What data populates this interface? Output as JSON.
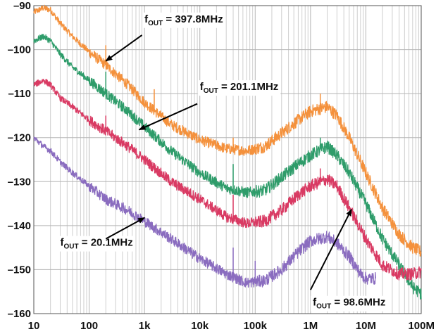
{
  "chart_data": {
    "type": "line",
    "title": "",
    "xlabel": "",
    "ylabel": "",
    "x_scale": "log",
    "xlim": [
      10,
      100000000
    ],
    "ylim": [
      -160,
      -90
    ],
    "grid": true,
    "x_ticks": [
      {
        "value": 10,
        "label": "10"
      },
      {
        "value": 100,
        "label": "100"
      },
      {
        "value": 1000,
        "label": "1k"
      },
      {
        "value": 10000,
        "label": "10k"
      },
      {
        "value": 100000,
        "label": "100k"
      },
      {
        "value": 1000000,
        "label": "1M"
      },
      {
        "value": 10000000,
        "label": "10M"
      },
      {
        "value": 100000000,
        "label": "100M"
      }
    ],
    "y_ticks": [
      {
        "value": -90,
        "label": "–90"
      },
      {
        "value": -100,
        "label": "–100"
      },
      {
        "value": -110,
        "label": "–110"
      },
      {
        "value": -120,
        "label": "–120"
      },
      {
        "value": -130,
        "label": "–130"
      },
      {
        "value": -140,
        "label": "–140"
      },
      {
        "value": -150,
        "label": "–150"
      },
      {
        "value": -160,
        "label": "–160"
      }
    ],
    "series": [
      {
        "name": "fOUT = 397.8MHz",
        "color": "#f4913c",
        "points": [
          [
            10,
            -91.5
          ],
          [
            15,
            -90.5
          ],
          [
            20,
            -91
          ],
          [
            30,
            -94
          ],
          [
            50,
            -97
          ],
          [
            100,
            -100.5
          ],
          [
            200,
            -103.5
          ],
          [
            500,
            -108
          ],
          [
            1000,
            -112
          ],
          [
            3000,
            -117
          ],
          [
            10000,
            -120.5
          ],
          [
            30000,
            -122.5
          ],
          [
            70000,
            -123
          ],
          [
            150000,
            -122
          ],
          [
            300000,
            -119
          ],
          [
            600000,
            -116
          ],
          [
            1000000,
            -114
          ],
          [
            2000000,
            -113
          ],
          [
            3000000,
            -115
          ],
          [
            5000000,
            -120
          ],
          [
            10000000,
            -128
          ],
          [
            20000000,
            -136
          ],
          [
            40000000,
            -142
          ],
          [
            70000000,
            -145
          ],
          [
            100000000,
            -146
          ]
        ],
        "spurs": [
          [
            200,
            -99
          ],
          [
            1500,
            -109
          ],
          [
            40000,
            -120
          ],
          [
            1500000,
            -110
          ]
        ]
      },
      {
        "name": "fOUT = 201.1MHz",
        "color": "#2e9c6a",
        "points": [
          [
            10,
            -98
          ],
          [
            15,
            -97
          ],
          [
            20,
            -98
          ],
          [
            30,
            -101
          ],
          [
            50,
            -104
          ],
          [
            100,
            -107
          ],
          [
            200,
            -110
          ],
          [
            500,
            -114
          ],
          [
            1000,
            -117.5
          ],
          [
            3000,
            -123
          ],
          [
            10000,
            -128
          ],
          [
            30000,
            -131.5
          ],
          [
            70000,
            -132.5
          ],
          [
            150000,
            -132
          ],
          [
            300000,
            -129
          ],
          [
            600000,
            -126
          ],
          [
            1000000,
            -124
          ],
          [
            2000000,
            -122
          ],
          [
            3000000,
            -124
          ],
          [
            5000000,
            -128
          ],
          [
            10000000,
            -135
          ],
          [
            20000000,
            -143
          ],
          [
            40000000,
            -149
          ],
          [
            70000000,
            -154
          ],
          [
            100000000,
            -155.5
          ]
        ],
        "spurs": [
          [
            200,
            -105
          ],
          [
            40000,
            -126
          ],
          [
            1500000,
            -120
          ]
        ]
      },
      {
        "name": "fOUT = 98.6MHz",
        "color": "#d93a63",
        "points": [
          [
            10,
            -108
          ],
          [
            15,
            -107
          ],
          [
            20,
            -108
          ],
          [
            30,
            -111
          ],
          [
            50,
            -113
          ],
          [
            100,
            -116
          ],
          [
            200,
            -118.5
          ],
          [
            500,
            -122
          ],
          [
            1000,
            -125
          ],
          [
            3000,
            -130
          ],
          [
            10000,
            -134
          ],
          [
            30000,
            -138
          ],
          [
            70000,
            -139.5
          ],
          [
            150000,
            -139
          ],
          [
            300000,
            -136.5
          ],
          [
            600000,
            -133
          ],
          [
            1000000,
            -131
          ],
          [
            2000000,
            -129.5
          ],
          [
            3000000,
            -131
          ],
          [
            5000000,
            -136
          ],
          [
            10000000,
            -143
          ],
          [
            20000000,
            -149
          ],
          [
            40000000,
            -151
          ],
          [
            70000000,
            -151
          ],
          [
            100000000,
            -150.5
          ]
        ],
        "spurs": [
          [
            200,
            -115
          ],
          [
            40000,
            -133
          ],
          [
            1500000,
            -127
          ]
        ]
      },
      {
        "name": "fOUT = 20.1MHz",
        "color": "#8a6cbf",
        "points": [
          [
            10,
            -120
          ],
          [
            15,
            -122
          ],
          [
            20,
            -123
          ],
          [
            30,
            -125.5
          ],
          [
            50,
            -128
          ],
          [
            100,
            -131
          ],
          [
            200,
            -134
          ],
          [
            500,
            -136.5
          ],
          [
            1000,
            -139
          ],
          [
            3000,
            -143
          ],
          [
            10000,
            -147.5
          ],
          [
            30000,
            -151
          ],
          [
            70000,
            -153
          ],
          [
            150000,
            -152.5
          ],
          [
            300000,
            -150
          ],
          [
            600000,
            -146
          ],
          [
            1000000,
            -143.5
          ],
          [
            2000000,
            -142.5
          ],
          [
            3000000,
            -144
          ],
          [
            5000000,
            -147
          ],
          [
            8000000,
            -151
          ],
          [
            10000000,
            -152
          ],
          [
            15000000,
            -152
          ]
        ],
        "spurs": [
          [
            40000,
            -145
          ],
          [
            100000,
            -148
          ]
        ]
      }
    ],
    "annotations": [
      {
        "label_main": "f",
        "label_sub": "OUT",
        "label_rest": " = 397.8MHz",
        "series": 0,
        "text_at": [
          1000,
          -93.8
        ],
        "text_anchor": "start",
        "arrow_from": [
          900,
          -96.7
        ],
        "arrow_to": [
          200,
          -102.6
        ]
      },
      {
        "label_main": "f",
        "label_sub": "OUT",
        "label_rest": " = 201.1MHz",
        "series": 1,
        "text_at": [
          10000,
          -109.2
        ],
        "text_anchor": "start",
        "arrow_from": [
          9000,
          -112.3
        ],
        "arrow_to": [
          800,
          -118.2
        ]
      },
      {
        "label_main": "f",
        "label_sub": "OUT",
        "label_rest": " = 20.1MHz",
        "series": 3,
        "text_at": [
          30,
          -144.6
        ],
        "text_anchor": "start",
        "arrow_from": [
          200,
          -143
        ],
        "arrow_to": [
          1000,
          -138.2
        ]
      },
      {
        "label_main": "f",
        "label_sub": "OUT",
        "label_rest": " = 98.6MHz",
        "series": 2,
        "text_at": [
          1100000,
          -158.2
        ],
        "text_anchor": "start",
        "arrow_from": [
          1000000,
          -154.6
        ],
        "arrow_to": [
          5500000,
          -136.3
        ]
      }
    ]
  }
}
